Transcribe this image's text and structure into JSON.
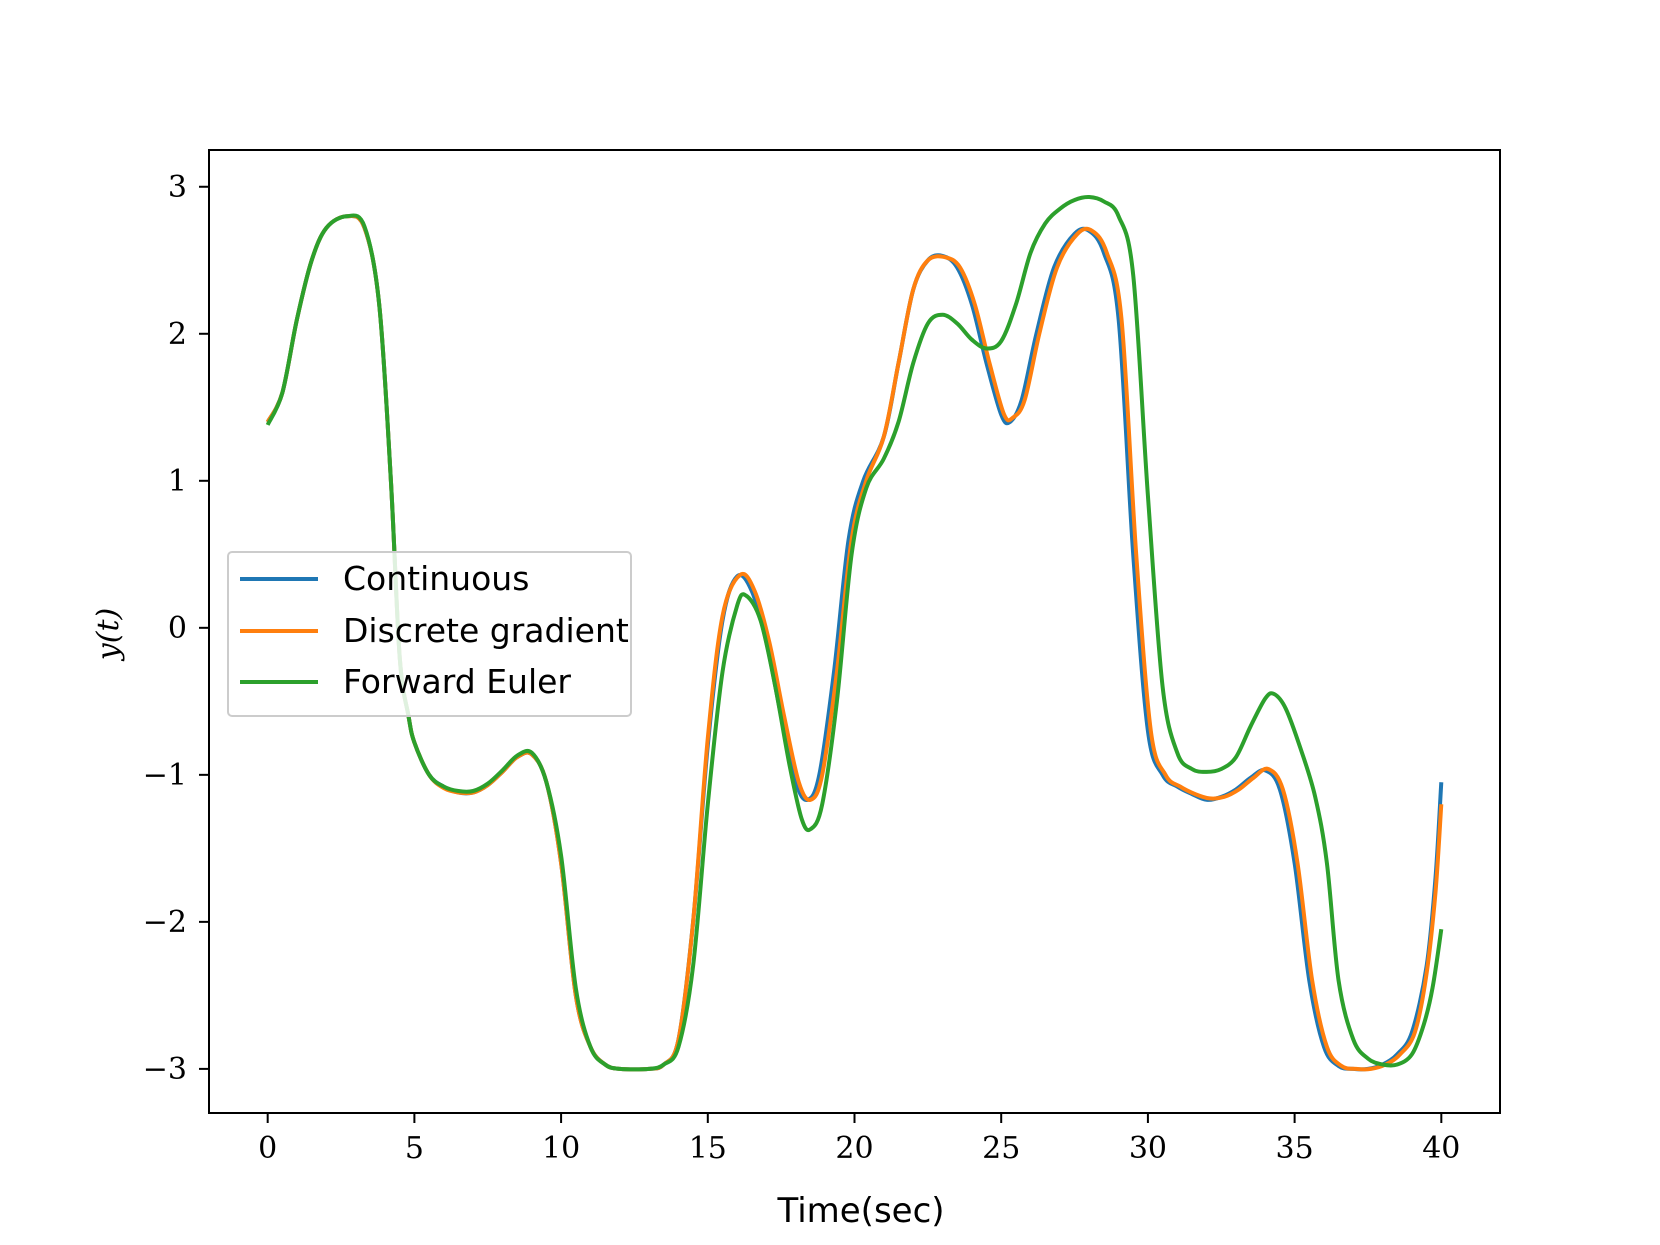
{
  "chart_data": {
    "type": "line",
    "title": "",
    "xlabel": "Time(sec)",
    "ylabel": "y(t)",
    "xlim": [
      -2,
      42
    ],
    "ylim": [
      -3.3,
      3.25
    ],
    "xticks": [
      0,
      5,
      10,
      15,
      20,
      25,
      30,
      35,
      40
    ],
    "yticks": [
      -3,
      -2,
      -1,
      0,
      1,
      2,
      3
    ],
    "xtick_labels": [
      "0",
      "5",
      "10",
      "15",
      "20",
      "25",
      "30",
      "35",
      "40"
    ],
    "ytick_labels": [
      "−3",
      "−2",
      "−1",
      "0",
      "1",
      "2",
      "3"
    ],
    "grid": false,
    "legend_position": "center-left",
    "series": [
      {
        "name": "Continuous",
        "color": "#1f77b4",
        "points": [
          [
            0,
            1.4
          ],
          [
            0.5,
            1.6
          ],
          [
            1,
            2.1
          ],
          [
            1.5,
            2.5
          ],
          [
            2,
            2.72
          ],
          [
            2.7,
            2.8
          ],
          [
            3.3,
            2.72
          ],
          [
            3.8,
            2.2
          ],
          [
            4.2,
            1.0
          ],
          [
            4.5,
            -0.2
          ],
          [
            4.8,
            -0.6
          ],
          [
            5,
            -0.78
          ],
          [
            5.5,
            -1.0
          ],
          [
            6,
            -1.08
          ],
          [
            6.5,
            -1.12
          ],
          [
            7,
            -1.12
          ],
          [
            7.5,
            -1.07
          ],
          [
            8,
            -0.98
          ],
          [
            8.5,
            -0.88
          ],
          [
            9,
            -0.86
          ],
          [
            9.5,
            -1.05
          ],
          [
            10,
            -1.6
          ],
          [
            10.5,
            -2.5
          ],
          [
            11,
            -2.85
          ],
          [
            11.5,
            -2.97
          ],
          [
            12,
            -3.0
          ],
          [
            13,
            -3.0
          ],
          [
            13.5,
            -2.97
          ],
          [
            14,
            -2.8
          ],
          [
            14.5,
            -2.0
          ],
          [
            15,
            -0.8
          ],
          [
            15.5,
            0.05
          ],
          [
            16,
            0.35
          ],
          [
            16.5,
            0.25
          ],
          [
            17,
            -0.1
          ],
          [
            17.5,
            -0.6
          ],
          [
            18,
            -1.05
          ],
          [
            18.4,
            -1.17
          ],
          [
            18.8,
            -1.0
          ],
          [
            19.3,
            -0.3
          ],
          [
            19.8,
            0.6
          ],
          [
            20.3,
            1.0
          ],
          [
            21,
            1.3
          ],
          [
            21.5,
            1.8
          ],
          [
            22,
            2.3
          ],
          [
            22.5,
            2.5
          ],
          [
            23,
            2.53
          ],
          [
            23.5,
            2.45
          ],
          [
            24,
            2.2
          ],
          [
            24.5,
            1.8
          ],
          [
            25,
            1.45
          ],
          [
            25.3,
            1.4
          ],
          [
            25.7,
            1.55
          ],
          [
            26.2,
            2.0
          ],
          [
            26.8,
            2.45
          ],
          [
            27.5,
            2.68
          ],
          [
            28,
            2.7
          ],
          [
            28.5,
            2.55
          ],
          [
            29,
            2.1
          ],
          [
            29.5,
            0.5
          ],
          [
            30,
            -0.7
          ],
          [
            30.5,
            -1.0
          ],
          [
            31,
            -1.08
          ],
          [
            31.5,
            -1.13
          ],
          [
            32,
            -1.17
          ],
          [
            32.5,
            -1.15
          ],
          [
            33,
            -1.1
          ],
          [
            33.5,
            -1.02
          ],
          [
            34,
            -0.97
          ],
          [
            34.5,
            -1.1
          ],
          [
            35,
            -1.6
          ],
          [
            35.5,
            -2.4
          ],
          [
            36,
            -2.85
          ],
          [
            36.5,
            -2.98
          ],
          [
            37,
            -3.0
          ],
          [
            37.5,
            -3.0
          ],
          [
            38,
            -2.97
          ],
          [
            38.5,
            -2.9
          ],
          [
            39,
            -2.75
          ],
          [
            39.5,
            -2.3
          ],
          [
            39.8,
            -1.7
          ],
          [
            40,
            -1.05
          ]
        ]
      },
      {
        "name": "Discrete gradient",
        "color": "#ff7f0e",
        "points": [
          [
            0,
            1.4
          ],
          [
            0.5,
            1.6
          ],
          [
            1,
            2.1
          ],
          [
            1.5,
            2.5
          ],
          [
            2,
            2.72
          ],
          [
            2.7,
            2.8
          ],
          [
            3.3,
            2.72
          ],
          [
            3.8,
            2.2
          ],
          [
            4.2,
            1.0
          ],
          [
            4.5,
            -0.2
          ],
          [
            4.8,
            -0.6
          ],
          [
            5,
            -0.78
          ],
          [
            5.5,
            -1.0
          ],
          [
            6,
            -1.09
          ],
          [
            6.5,
            -1.12
          ],
          [
            7,
            -1.12
          ],
          [
            7.5,
            -1.07
          ],
          [
            8,
            -0.98
          ],
          [
            8.5,
            -0.88
          ],
          [
            9,
            -0.86
          ],
          [
            9.5,
            -1.05
          ],
          [
            10,
            -1.6
          ],
          [
            10.5,
            -2.5
          ],
          [
            11,
            -2.85
          ],
          [
            11.5,
            -2.97
          ],
          [
            12,
            -3.0
          ],
          [
            13,
            -3.0
          ],
          [
            13.5,
            -2.97
          ],
          [
            14,
            -2.8
          ],
          [
            14.5,
            -2.0
          ],
          [
            15,
            -0.75
          ],
          [
            15.5,
            0.08
          ],
          [
            16.1,
            0.36
          ],
          [
            16.6,
            0.25
          ],
          [
            17.1,
            -0.1
          ],
          [
            17.6,
            -0.6
          ],
          [
            18.1,
            -1.05
          ],
          [
            18.5,
            -1.17
          ],
          [
            18.9,
            -1.0
          ],
          [
            19.4,
            -0.3
          ],
          [
            19.9,
            0.6
          ],
          [
            20.4,
            1.0
          ],
          [
            21,
            1.3
          ],
          [
            21.5,
            1.8
          ],
          [
            22,
            2.3
          ],
          [
            22.5,
            2.5
          ],
          [
            23.1,
            2.52
          ],
          [
            23.6,
            2.45
          ],
          [
            24.1,
            2.2
          ],
          [
            24.6,
            1.8
          ],
          [
            25.1,
            1.45
          ],
          [
            25.4,
            1.43
          ],
          [
            25.8,
            1.55
          ],
          [
            26.3,
            2.0
          ],
          [
            26.9,
            2.45
          ],
          [
            27.6,
            2.68
          ],
          [
            28.1,
            2.7
          ],
          [
            28.6,
            2.55
          ],
          [
            29.1,
            2.1
          ],
          [
            29.6,
            0.5
          ],
          [
            30.1,
            -0.7
          ],
          [
            30.6,
            -1.0
          ],
          [
            31.1,
            -1.08
          ],
          [
            31.6,
            -1.13
          ],
          [
            32.1,
            -1.16
          ],
          [
            32.6,
            -1.15
          ],
          [
            33.1,
            -1.1
          ],
          [
            33.6,
            -1.02
          ],
          [
            34.1,
            -0.96
          ],
          [
            34.6,
            -1.1
          ],
          [
            35.1,
            -1.6
          ],
          [
            35.6,
            -2.4
          ],
          [
            36.1,
            -2.85
          ],
          [
            36.6,
            -2.98
          ],
          [
            37.1,
            -3.0
          ],
          [
            37.6,
            -3.0
          ],
          [
            38.1,
            -2.97
          ],
          [
            38.6,
            -2.9
          ],
          [
            39.1,
            -2.75
          ],
          [
            39.5,
            -2.35
          ],
          [
            39.8,
            -1.8
          ],
          [
            40,
            -1.2
          ]
        ]
      },
      {
        "name": "Forward Euler",
        "color": "#2ca02c",
        "points": [
          [
            0,
            1.38
          ],
          [
            0.5,
            1.6
          ],
          [
            1,
            2.1
          ],
          [
            1.5,
            2.5
          ],
          [
            2,
            2.72
          ],
          [
            2.7,
            2.8
          ],
          [
            3.3,
            2.73
          ],
          [
            3.8,
            2.2
          ],
          [
            4.2,
            1.0
          ],
          [
            4.5,
            -0.2
          ],
          [
            4.8,
            -0.6
          ],
          [
            5,
            -0.78
          ],
          [
            5.5,
            -1.0
          ],
          [
            6,
            -1.08
          ],
          [
            6.5,
            -1.11
          ],
          [
            7,
            -1.11
          ],
          [
            7.5,
            -1.06
          ],
          [
            8,
            -0.97
          ],
          [
            8.5,
            -0.87
          ],
          [
            9,
            -0.85
          ],
          [
            9.5,
            -1.05
          ],
          [
            10,
            -1.55
          ],
          [
            10.5,
            -2.45
          ],
          [
            11,
            -2.85
          ],
          [
            11.5,
            -2.97
          ],
          [
            12,
            -3.0
          ],
          [
            13,
            -3.0
          ],
          [
            13.5,
            -2.97
          ],
          [
            14,
            -2.85
          ],
          [
            14.5,
            -2.3
          ],
          [
            15,
            -1.2
          ],
          [
            15.5,
            -0.3
          ],
          [
            16,
            0.15
          ],
          [
            16.3,
            0.22
          ],
          [
            16.8,
            0.05
          ],
          [
            17.3,
            -0.4
          ],
          [
            17.8,
            -0.95
          ],
          [
            18.2,
            -1.3
          ],
          [
            18.5,
            -1.37
          ],
          [
            18.9,
            -1.2
          ],
          [
            19.4,
            -0.5
          ],
          [
            19.9,
            0.5
          ],
          [
            20.4,
            0.95
          ],
          [
            21,
            1.15
          ],
          [
            21.5,
            1.4
          ],
          [
            22,
            1.8
          ],
          [
            22.5,
            2.07
          ],
          [
            23,
            2.13
          ],
          [
            23.5,
            2.07
          ],
          [
            24,
            1.96
          ],
          [
            24.5,
            1.9
          ],
          [
            25,
            1.95
          ],
          [
            25.5,
            2.2
          ],
          [
            26,
            2.55
          ],
          [
            26.5,
            2.75
          ],
          [
            27,
            2.85
          ],
          [
            27.5,
            2.91
          ],
          [
            28,
            2.93
          ],
          [
            28.5,
            2.9
          ],
          [
            29,
            2.8
          ],
          [
            29.5,
            2.4
          ],
          [
            30,
            0.9
          ],
          [
            30.5,
            -0.4
          ],
          [
            31,
            -0.85
          ],
          [
            31.5,
            -0.96
          ],
          [
            32,
            -0.98
          ],
          [
            32.5,
            -0.96
          ],
          [
            33,
            -0.88
          ],
          [
            33.5,
            -0.67
          ],
          [
            34,
            -0.48
          ],
          [
            34.3,
            -0.45
          ],
          [
            34.7,
            -0.55
          ],
          [
            35.2,
            -0.82
          ],
          [
            35.7,
            -1.15
          ],
          [
            36.1,
            -1.6
          ],
          [
            36.5,
            -2.4
          ],
          [
            37,
            -2.8
          ],
          [
            37.5,
            -2.93
          ],
          [
            38,
            -2.97
          ],
          [
            38.5,
            -2.97
          ],
          [
            39,
            -2.9
          ],
          [
            39.4,
            -2.7
          ],
          [
            39.7,
            -2.45
          ],
          [
            40,
            -2.05
          ]
        ]
      }
    ]
  }
}
